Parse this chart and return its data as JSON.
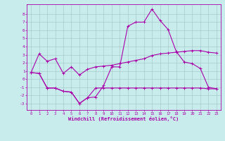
{
  "xlabel": "Windchill (Refroidissement éolien,°C)",
  "background_color": "#c8ecec",
  "grid_color": "#a0c4c4",
  "line_color": "#aa00aa",
  "xlim": [
    -0.5,
    23.5
  ],
  "ylim": [
    -3.8,
    9.2
  ],
  "xtick_vals": [
    0,
    1,
    2,
    3,
    4,
    5,
    6,
    7,
    8,
    9,
    10,
    11,
    12,
    13,
    14,
    15,
    16,
    17,
    18,
    19,
    20,
    21,
    22,
    23
  ],
  "ytick_vals": [
    -3,
    -2,
    -1,
    0,
    1,
    2,
    3,
    4,
    5,
    6,
    7,
    8
  ],
  "line1_x": [
    0,
    1,
    2,
    3,
    4,
    5,
    6,
    7,
    8,
    9,
    10,
    11,
    12,
    13,
    14,
    15,
    16,
    17,
    18,
    19,
    20,
    21,
    22,
    23
  ],
  "line1_y": [
    0.8,
    3.1,
    2.2,
    2.5,
    0.7,
    1.5,
    0.5,
    1.2,
    1.5,
    1.6,
    1.7,
    1.9,
    2.1,
    2.3,
    2.5,
    2.9,
    3.1,
    3.2,
    3.3,
    3.4,
    3.5,
    3.5,
    3.3,
    3.2
  ],
  "line2_x": [
    0,
    1,
    2,
    3,
    4,
    5,
    6,
    7,
    8,
    9,
    10,
    11,
    12,
    13,
    14,
    15,
    16,
    17,
    18,
    19,
    20,
    21,
    22,
    23
  ],
  "line2_y": [
    0.8,
    0.7,
    -1.1,
    -1.1,
    -1.5,
    -1.6,
    -3.0,
    -2.3,
    -2.2,
    -0.8,
    1.5,
    1.5,
    6.5,
    7.0,
    7.0,
    8.6,
    7.2,
    6.1,
    3.4,
    2.1,
    1.9,
    1.3,
    -1.0,
    -1.2
  ],
  "line3_x": [
    0,
    1,
    2,
    3,
    4,
    5,
    6,
    7,
    8,
    9,
    10,
    11,
    12,
    13,
    14,
    15,
    16,
    17,
    18,
    19,
    20,
    21,
    22,
    23
  ],
  "line3_y": [
    0.8,
    0.7,
    -1.1,
    -1.1,
    -1.5,
    -1.6,
    -3.0,
    -2.3,
    -1.1,
    -1.1,
    -1.1,
    -1.1,
    -1.1,
    -1.1,
    -1.1,
    -1.1,
    -1.1,
    -1.1,
    -1.1,
    -1.1,
    -1.1,
    -1.1,
    -1.2,
    -1.2
  ]
}
